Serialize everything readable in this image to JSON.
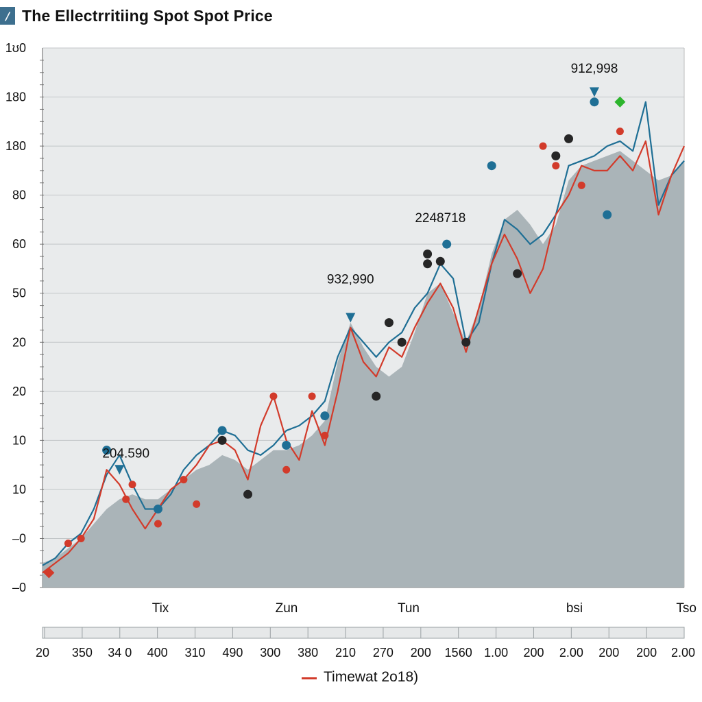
{
  "title": "The Ellectrritiing Spot Spot Price",
  "legend": {
    "label": "Timewat 2o18)",
    "color": "#d23b2b"
  },
  "colors": {
    "area": "#aab4b8",
    "blue": "#1f6f95",
    "red": "#d23b2b",
    "dark": "#262626",
    "green": "#2db52d",
    "plot_bg": "#e9ebec"
  },
  "chart_data": {
    "type": "line",
    "title": "The Ellectrritiing Spot Spot Price",
    "xlabel": "",
    "ylabel": "",
    "y_tick_labels": [
      "–0",
      "–0",
      "10",
      "10",
      "20",
      "20",
      "50",
      "60",
      "80",
      "180",
      "180",
      "1ʊ0"
    ],
    "x_category_labels": [
      "Tix",
      "Zun",
      "Tun",
      "bsi",
      "Tso"
    ],
    "x_secondary_labels": [
      "20",
      "350",
      "34 0",
      "400",
      "310",
      "490",
      "300",
      "380",
      "210",
      "270",
      "200",
      "1560",
      "1.00",
      "200",
      "2.00",
      "200",
      "200",
      "2.00"
    ],
    "annotations": [
      "204.590",
      "932,990",
      "2248718",
      "912,998"
    ],
    "ylim": [
      0,
      11
    ],
    "x": [
      0,
      1,
      2,
      3,
      4,
      5,
      6,
      7,
      8,
      9,
      10,
      11,
      12,
      13,
      14,
      15,
      16,
      17,
      18,
      19,
      20,
      21,
      22,
      23,
      24,
      25,
      26,
      27,
      28,
      29,
      30,
      31,
      32,
      33,
      34,
      35,
      36,
      37,
      38,
      39,
      40,
      41,
      42,
      43,
      44,
      45,
      46,
      47,
      48,
      49,
      50
    ],
    "series": [
      {
        "kind": "area",
        "values": [
          0.5,
          0.6,
          0.8,
          1.0,
          1.3,
          1.6,
          1.8,
          1.9,
          1.8,
          1.8,
          2.0,
          2.2,
          2.4,
          2.5,
          2.7,
          2.6,
          2.4,
          2.6,
          2.8,
          2.8,
          2.9,
          3.1,
          3.4,
          4.6,
          5.4,
          4.9,
          4.5,
          4.3,
          4.5,
          5.2,
          6.0,
          6.2,
          5.6,
          5.0,
          5.7,
          6.8,
          7.5,
          7.7,
          7.4,
          7.0,
          7.4,
          8.3,
          8.6,
          8.7,
          8.8,
          8.9,
          8.7,
          8.5,
          8.3,
          8.4,
          8.7
        ]
      },
      {
        "kind": "line",
        "color": "blue",
        "values": [
          0.45,
          0.6,
          0.9,
          1.1,
          1.6,
          2.3,
          2.7,
          2.1,
          1.6,
          1.6,
          1.9,
          2.4,
          2.7,
          2.9,
          3.2,
          3.1,
          2.8,
          2.7,
          2.9,
          3.2,
          3.3,
          3.5,
          3.8,
          4.7,
          5.3,
          5.0,
          4.7,
          5.0,
          5.2,
          5.7,
          6.0,
          6.6,
          6.3,
          5.0,
          5.4,
          6.6,
          7.5,
          7.3,
          7.0,
          7.2,
          7.6,
          8.6,
          8.7,
          8.8,
          9.0,
          9.1,
          8.9,
          9.9,
          7.8,
          8.4,
          8.7
        ]
      },
      {
        "kind": "line",
        "color": "red",
        "values": [
          0.3,
          0.5,
          0.7,
          1.0,
          1.4,
          2.4,
          2.1,
          1.6,
          1.2,
          1.6,
          2.0,
          2.2,
          2.5,
          2.9,
          3.0,
          2.8,
          2.2,
          3.3,
          3.9,
          3.0,
          2.6,
          3.6,
          2.9,
          4.0,
          5.3,
          4.6,
          4.3,
          4.9,
          4.7,
          5.3,
          5.8,
          6.2,
          5.7,
          4.8,
          5.7,
          6.6,
          7.2,
          6.7,
          6.0,
          6.5,
          7.6,
          8.0,
          8.6,
          8.5,
          8.5,
          8.8,
          8.5,
          9.1,
          7.6,
          8.4,
          9.0
        ]
      }
    ],
    "markers": [
      {
        "shape": "diamond",
        "color": "red",
        "x": 0.5,
        "y": 0.3
      },
      {
        "shape": "circle",
        "color": "red",
        "x": 2.0,
        "y": 0.9
      },
      {
        "shape": "circle",
        "color": "red",
        "x": 3.0,
        "y": 1.0
      },
      {
        "shape": "circle",
        "color": "blue",
        "x": 5.0,
        "y": 2.8
      },
      {
        "shape": "triangle",
        "color": "blue",
        "x": 6.0,
        "y": 2.4
      },
      {
        "shape": "circle",
        "color": "red",
        "x": 6.5,
        "y": 1.8
      },
      {
        "shape": "circle",
        "color": "red",
        "x": 7.0,
        "y": 2.1
      },
      {
        "shape": "circle",
        "color": "blue",
        "x": 9.0,
        "y": 1.6
      },
      {
        "shape": "circle",
        "color": "red",
        "x": 9.0,
        "y": 1.3
      },
      {
        "shape": "circle",
        "color": "red",
        "x": 11.0,
        "y": 2.2
      },
      {
        "shape": "circle",
        "color": "red",
        "x": 12.0,
        "y": 1.7
      },
      {
        "shape": "circle",
        "color": "blue",
        "x": 14.0,
        "y": 3.2
      },
      {
        "shape": "circle",
        "color": "dark",
        "x": 14.0,
        "y": 3.0
      },
      {
        "shape": "circle",
        "color": "dark",
        "x": 16.0,
        "y": 1.9
      },
      {
        "shape": "circle",
        "color": "red",
        "x": 18.0,
        "y": 3.9
      },
      {
        "shape": "circle",
        "color": "blue",
        "x": 19.0,
        "y": 2.9
      },
      {
        "shape": "circle",
        "color": "red",
        "x": 19.0,
        "y": 2.4
      },
      {
        "shape": "circle",
        "color": "red",
        "x": 21.0,
        "y": 3.9
      },
      {
        "shape": "circle",
        "color": "blue",
        "x": 22.0,
        "y": 3.5
      },
      {
        "shape": "circle",
        "color": "red",
        "x": 22.0,
        "y": 3.1
      },
      {
        "shape": "triangle",
        "color": "blue",
        "x": 24.0,
        "y": 5.5
      },
      {
        "shape": "circle",
        "color": "dark",
        "x": 26.0,
        "y": 3.9
      },
      {
        "shape": "circle",
        "color": "dark",
        "x": 27.0,
        "y": 5.4
      },
      {
        "shape": "circle",
        "color": "dark",
        "x": 28.0,
        "y": 5.0
      },
      {
        "shape": "circle",
        "color": "dark",
        "x": 30.0,
        "y": 6.8
      },
      {
        "shape": "circle",
        "color": "dark",
        "x": 30.0,
        "y": 6.6
      },
      {
        "shape": "circle",
        "color": "dark",
        "x": 31.0,
        "y": 6.65
      },
      {
        "shape": "circle",
        "color": "blue",
        "x": 31.5,
        "y": 7.0
      },
      {
        "shape": "circle",
        "color": "dark",
        "x": 33.0,
        "y": 5.0
      },
      {
        "shape": "circle",
        "color": "blue",
        "x": 35.0,
        "y": 8.6
      },
      {
        "shape": "circle",
        "color": "dark",
        "x": 37.0,
        "y": 6.4
      },
      {
        "shape": "circle",
        "color": "red",
        "x": 39.0,
        "y": 9.0
      },
      {
        "shape": "circle",
        "color": "red",
        "x": 40.0,
        "y": 8.6
      },
      {
        "shape": "circle",
        "color": "dark",
        "x": 40.0,
        "y": 8.8
      },
      {
        "shape": "circle",
        "color": "dark",
        "x": 41.0,
        "y": 9.15
      },
      {
        "shape": "circle",
        "color": "red",
        "x": 42.0,
        "y": 8.2
      },
      {
        "shape": "triangle",
        "color": "blue",
        "x": 43.0,
        "y": 10.1
      },
      {
        "shape": "circle",
        "color": "blue",
        "x": 43.0,
        "y": 9.9
      },
      {
        "shape": "circle",
        "color": "blue",
        "x": 44.0,
        "y": 7.6
      },
      {
        "shape": "circle",
        "color": "red",
        "x": 45.0,
        "y": 9.3
      },
      {
        "shape": "diamond",
        "color": "green",
        "x": 45.0,
        "y": 9.9
      }
    ],
    "annotation_positions": [
      {
        "text_index": 0,
        "x": 6.5,
        "y": 2.65
      },
      {
        "text_index": 1,
        "x": 24.0,
        "y": 6.2
      },
      {
        "text_index": 2,
        "x": 31.0,
        "y": 7.45
      },
      {
        "text_index": 3,
        "x": 43.0,
        "y": 10.5
      }
    ],
    "grid": true
  }
}
